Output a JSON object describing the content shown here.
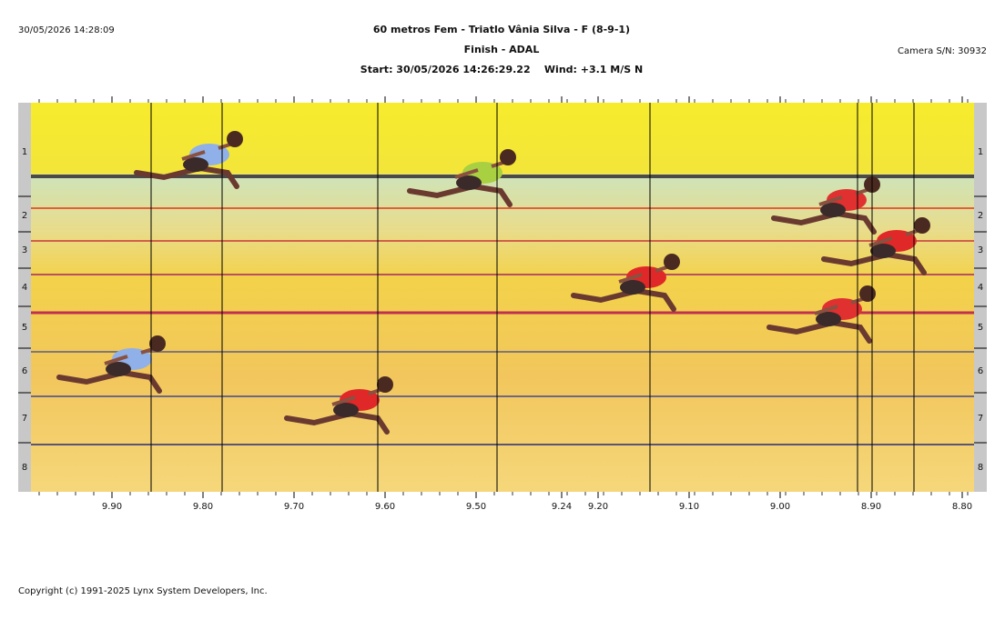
{
  "header": {
    "timestamp": "30/05/2026 14:28:09",
    "title": "60 metros Fem - Triatlo Vânia Silva - F (8-9-1)",
    "subtitle": "Finish - ADAL",
    "start": "Start: 30/05/2026 14:26:29.22    Wind: +3.1 M/S N",
    "camera": "Camera S/N: 30932"
  },
  "lanes": [
    "1",
    "2",
    "3",
    "4",
    "5",
    "6",
    "7",
    "8"
  ],
  "time_axis": [
    "9.90",
    "9.80",
    "9.70",
    "9.60",
    "9.50",
    "9.24",
    "9.20",
    "9.10",
    "9.00",
    "8.90",
    "8.80"
  ],
  "footer": "Copyright (c) 1991-2025 Lynx System Developers, Inc."
}
